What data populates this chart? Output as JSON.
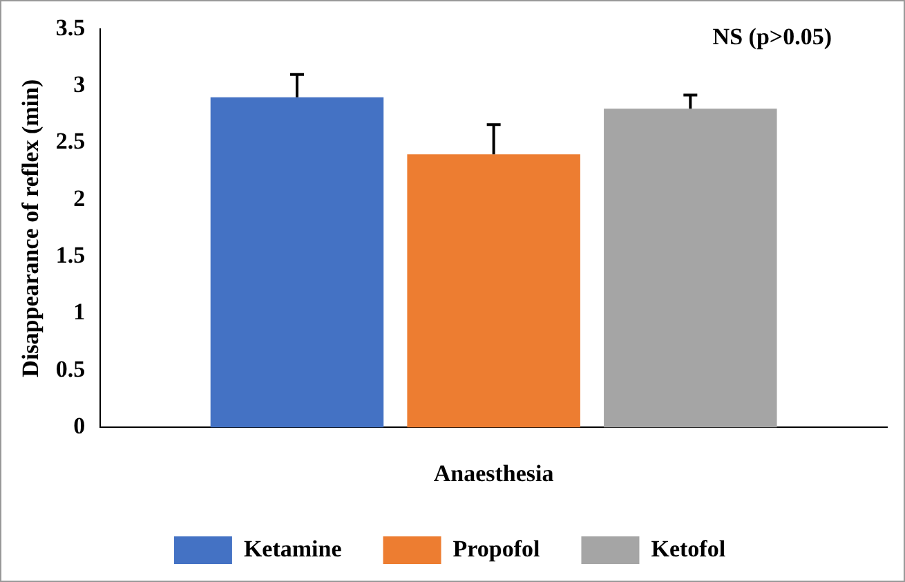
{
  "chart_data": {
    "type": "bar",
    "xlabel": "Anaesthesia",
    "ylabel": "Disappearance of reflex (min)",
    "categories": [
      null
    ],
    "series": [
      {
        "name": "Ketamine",
        "color": "#4472c4",
        "values": [
          2.9
        ],
        "errors": [
          [
            2.9,
            3.1
          ]
        ]
      },
      {
        "name": "Propofol",
        "color": "#ed7d31",
        "values": [
          2.4
        ],
        "errors": [
          [
            2.4,
            2.66
          ]
        ]
      },
      {
        "name": "Ketofol",
        "color": "#a5a5a5",
        "values": [
          2.8
        ],
        "errors": [
          [
            2.8,
            2.92
          ]
        ]
      }
    ],
    "ylim": [
      0,
      3.5
    ],
    "yticks": [
      0,
      0.5,
      1,
      1.5,
      2,
      2.5,
      3,
      3.5
    ],
    "grid": false,
    "legend": "bottom",
    "annotations": [
      "NS (p>0.05)"
    ]
  }
}
